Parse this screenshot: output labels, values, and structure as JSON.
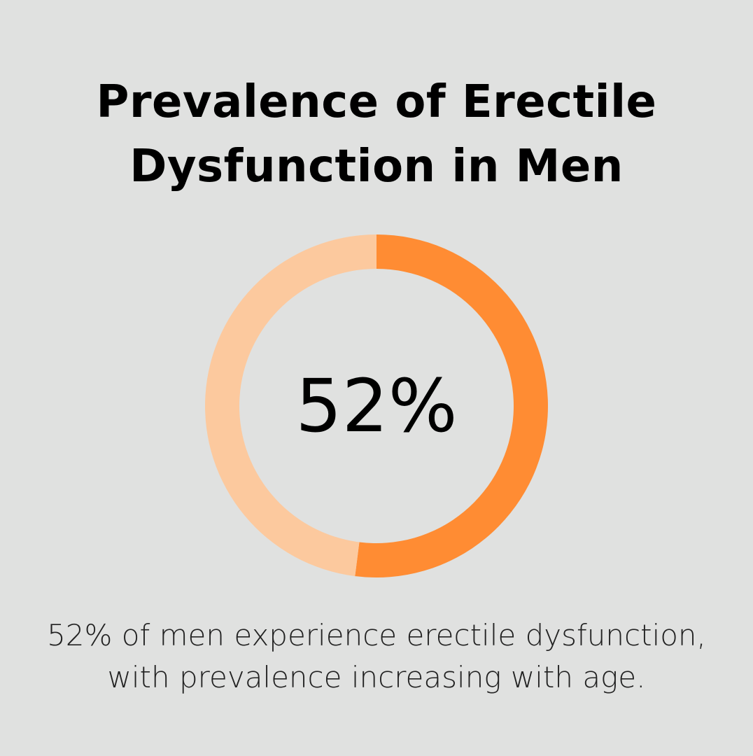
{
  "title_line1": "Prevalence of Erectile",
  "title_line2": "Dysfunction in Men",
  "chart_data": {
    "type": "pie",
    "variant": "donut",
    "title": "Prevalence of Erectile Dysfunction in Men",
    "center_label": "52%",
    "slices": [
      {
        "value": 52,
        "color": "#ff8c33"
      },
      {
        "value": 48,
        "color": "#fcc99e"
      }
    ]
  },
  "caption_line1": "52% of men experience erectile dysfunction,",
  "caption_line2": "with prevalence increasing with age."
}
